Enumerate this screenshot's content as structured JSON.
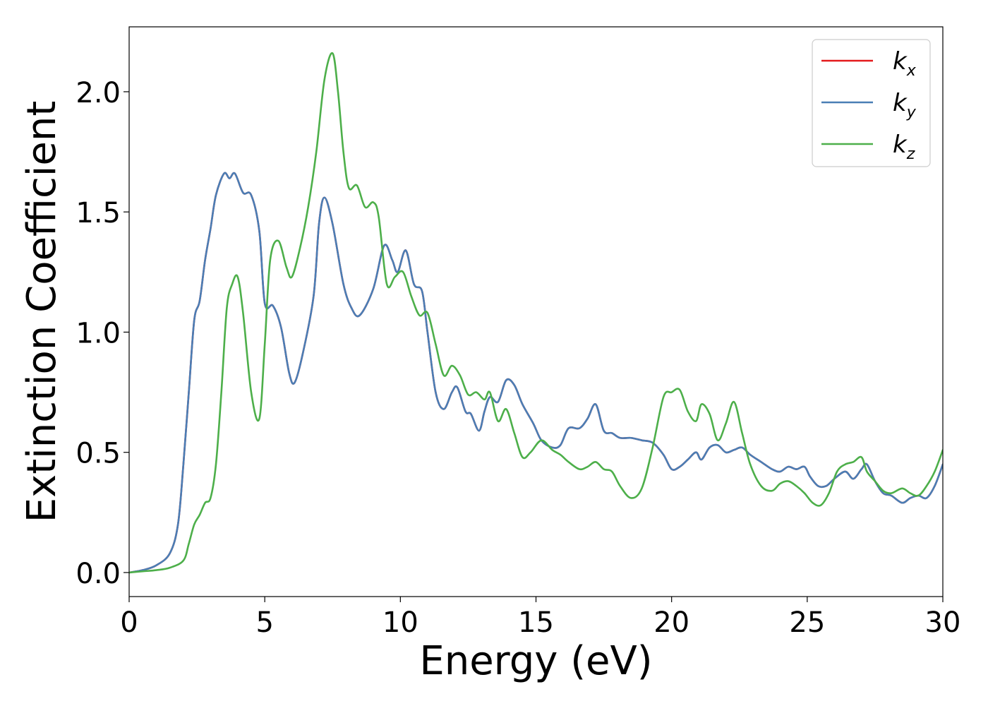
{
  "chart_data": {
    "type": "line",
    "title": "",
    "xlabel": "Energy (eV)",
    "ylabel": "Extinction Coefficient",
    "xlim": [
      0,
      30
    ],
    "ylim": [
      -0.1,
      2.27
    ],
    "xticks": [
      0,
      5,
      10,
      15,
      20,
      25,
      30
    ],
    "xtick_labels": [
      "0",
      "5",
      "10",
      "15",
      "20",
      "25",
      "30"
    ],
    "yticks": [
      0.0,
      0.5,
      1.0,
      1.5,
      2.0
    ],
    "ytick_labels": [
      "0.0",
      "0.5",
      "1.0",
      "1.5",
      "2.0"
    ],
    "grid": false,
    "legend_position": "top-right",
    "series": [
      {
        "name": "k_x",
        "legend_main": "k",
        "legend_sub": "x",
        "color": "#e41a1c",
        "x": [
          0,
          0.5,
          1.0,
          1.5,
          1.8,
          2.0,
          2.2,
          2.4,
          2.6,
          2.8,
          3.0,
          3.2,
          3.5,
          3.7,
          3.9,
          4.2,
          4.5,
          4.8,
          5.0,
          5.3,
          5.6,
          5.9,
          6.1,
          6.4,
          6.8,
          7.0,
          7.2,
          7.5,
          7.9,
          8.2,
          8.5,
          9.0,
          9.4,
          9.7,
          9.9,
          10.2,
          10.5,
          10.8,
          11.0,
          11.3,
          11.6,
          11.9,
          12.1,
          12.4,
          12.6,
          12.9,
          13.1,
          13.3,
          13.6,
          13.9,
          14.2,
          14.5,
          14.9,
          15.2,
          15.6,
          15.9,
          16.2,
          16.6,
          16.9,
          17.2,
          17.5,
          17.8,
          18.1,
          18.5,
          18.9,
          19.3,
          19.7,
          20.0,
          20.3,
          20.6,
          20.9,
          21.1,
          21.4,
          21.7,
          22.0,
          22.3,
          22.6,
          22.9,
          23.3,
          23.7,
          24.0,
          24.3,
          24.6,
          24.9,
          25.1,
          25.4,
          25.7,
          26.0,
          26.4,
          26.7,
          27.0,
          27.2,
          27.5,
          27.8,
          28.1,
          28.5,
          28.8,
          29.1,
          29.4,
          29.7,
          30.0
        ],
        "y": [
          0.0,
          0.01,
          0.03,
          0.08,
          0.2,
          0.45,
          0.75,
          1.05,
          1.13,
          1.3,
          1.43,
          1.57,
          1.66,
          1.64,
          1.66,
          1.58,
          1.57,
          1.42,
          1.12,
          1.11,
          1.02,
          0.83,
          0.79,
          0.91,
          1.15,
          1.45,
          1.56,
          1.45,
          1.2,
          1.1,
          1.07,
          1.18,
          1.36,
          1.3,
          1.25,
          1.34,
          1.2,
          1.17,
          1.0,
          0.75,
          0.68,
          0.75,
          0.77,
          0.67,
          0.66,
          0.59,
          0.67,
          0.73,
          0.71,
          0.8,
          0.78,
          0.7,
          0.62,
          0.55,
          0.52,
          0.53,
          0.6,
          0.6,
          0.64,
          0.7,
          0.59,
          0.58,
          0.56,
          0.56,
          0.55,
          0.54,
          0.49,
          0.43,
          0.44,
          0.47,
          0.5,
          0.47,
          0.52,
          0.53,
          0.5,
          0.51,
          0.52,
          0.49,
          0.46,
          0.43,
          0.42,
          0.44,
          0.43,
          0.44,
          0.4,
          0.36,
          0.36,
          0.39,
          0.42,
          0.39,
          0.43,
          0.45,
          0.38,
          0.33,
          0.32,
          0.29,
          0.31,
          0.32,
          0.31,
          0.36,
          0.45
        ]
      },
      {
        "name": "k_y",
        "legend_main": "k",
        "legend_sub": "y",
        "color": "#4a7eb5",
        "x": [
          0,
          0.5,
          1.0,
          1.5,
          1.8,
          2.0,
          2.2,
          2.4,
          2.6,
          2.8,
          3.0,
          3.2,
          3.5,
          3.7,
          3.9,
          4.2,
          4.5,
          4.8,
          5.0,
          5.3,
          5.6,
          5.9,
          6.1,
          6.4,
          6.8,
          7.0,
          7.2,
          7.5,
          7.9,
          8.2,
          8.5,
          9.0,
          9.4,
          9.7,
          9.9,
          10.2,
          10.5,
          10.8,
          11.0,
          11.3,
          11.6,
          11.9,
          12.1,
          12.4,
          12.6,
          12.9,
          13.1,
          13.3,
          13.6,
          13.9,
          14.2,
          14.5,
          14.9,
          15.2,
          15.6,
          15.9,
          16.2,
          16.6,
          16.9,
          17.2,
          17.5,
          17.8,
          18.1,
          18.5,
          18.9,
          19.3,
          19.7,
          20.0,
          20.3,
          20.6,
          20.9,
          21.1,
          21.4,
          21.7,
          22.0,
          22.3,
          22.6,
          22.9,
          23.3,
          23.7,
          24.0,
          24.3,
          24.6,
          24.9,
          25.1,
          25.4,
          25.7,
          26.0,
          26.4,
          26.7,
          27.0,
          27.2,
          27.5,
          27.8,
          28.1,
          28.5,
          28.8,
          29.1,
          29.4,
          29.7,
          30.0
        ],
        "y": [
          0.0,
          0.01,
          0.03,
          0.08,
          0.2,
          0.45,
          0.75,
          1.05,
          1.13,
          1.3,
          1.43,
          1.57,
          1.66,
          1.64,
          1.66,
          1.58,
          1.57,
          1.42,
          1.12,
          1.11,
          1.02,
          0.83,
          0.79,
          0.91,
          1.15,
          1.45,
          1.56,
          1.45,
          1.2,
          1.1,
          1.07,
          1.18,
          1.36,
          1.3,
          1.25,
          1.34,
          1.2,
          1.17,
          1.0,
          0.75,
          0.68,
          0.75,
          0.77,
          0.67,
          0.66,
          0.59,
          0.67,
          0.73,
          0.71,
          0.8,
          0.78,
          0.7,
          0.62,
          0.55,
          0.52,
          0.53,
          0.6,
          0.6,
          0.64,
          0.7,
          0.59,
          0.58,
          0.56,
          0.56,
          0.55,
          0.54,
          0.49,
          0.43,
          0.44,
          0.47,
          0.5,
          0.47,
          0.52,
          0.53,
          0.5,
          0.51,
          0.52,
          0.49,
          0.46,
          0.43,
          0.42,
          0.44,
          0.43,
          0.44,
          0.4,
          0.36,
          0.36,
          0.39,
          0.42,
          0.39,
          0.43,
          0.45,
          0.38,
          0.33,
          0.32,
          0.29,
          0.31,
          0.32,
          0.31,
          0.36,
          0.45
        ]
      },
      {
        "name": "k_z",
        "legend_main": "k",
        "legend_sub": "z",
        "color": "#4daf4a",
        "x": [
          0,
          0.5,
          1.0,
          1.5,
          2.0,
          2.2,
          2.4,
          2.6,
          2.8,
          3.0,
          3.2,
          3.4,
          3.6,
          3.8,
          4.0,
          4.2,
          4.5,
          4.8,
          5.0,
          5.2,
          5.5,
          5.8,
          6.0,
          6.3,
          6.6,
          6.9,
          7.2,
          7.5,
          7.7,
          7.9,
          8.1,
          8.4,
          8.7,
          9.0,
          9.2,
          9.5,
          9.8,
          10.1,
          10.4,
          10.7,
          11.0,
          11.3,
          11.6,
          11.9,
          12.2,
          12.5,
          12.8,
          13.1,
          13.3,
          13.6,
          13.9,
          14.2,
          14.5,
          14.8,
          15.2,
          15.6,
          15.9,
          16.2,
          16.6,
          16.9,
          17.2,
          17.5,
          17.8,
          18.1,
          18.5,
          18.9,
          19.3,
          19.7,
          20.0,
          20.3,
          20.6,
          20.9,
          21.1,
          21.4,
          21.7,
          22.0,
          22.3,
          22.6,
          22.9,
          23.3,
          23.7,
          24.0,
          24.3,
          24.6,
          24.9,
          25.2,
          25.5,
          25.8,
          26.1,
          26.4,
          26.7,
          27.0,
          27.2,
          27.5,
          27.8,
          28.1,
          28.5,
          28.8,
          29.1,
          29.4,
          29.7,
          30.0
        ],
        "y": [
          0.0,
          0.005,
          0.01,
          0.02,
          0.05,
          0.12,
          0.2,
          0.24,
          0.29,
          0.31,
          0.45,
          0.75,
          1.1,
          1.2,
          1.23,
          1.08,
          0.75,
          0.64,
          0.95,
          1.3,
          1.38,
          1.27,
          1.23,
          1.35,
          1.52,
          1.75,
          2.05,
          2.16,
          2.0,
          1.75,
          1.6,
          1.61,
          1.52,
          1.54,
          1.48,
          1.2,
          1.23,
          1.25,
          1.15,
          1.07,
          1.08,
          0.95,
          0.82,
          0.86,
          0.82,
          0.74,
          0.75,
          0.72,
          0.75,
          0.63,
          0.68,
          0.58,
          0.48,
          0.5,
          0.55,
          0.51,
          0.49,
          0.46,
          0.43,
          0.44,
          0.46,
          0.43,
          0.42,
          0.36,
          0.31,
          0.35,
          0.52,
          0.73,
          0.75,
          0.76,
          0.67,
          0.63,
          0.7,
          0.66,
          0.55,
          0.62,
          0.71,
          0.58,
          0.45,
          0.36,
          0.34,
          0.37,
          0.38,
          0.36,
          0.33,
          0.29,
          0.28,
          0.33,
          0.42,
          0.45,
          0.46,
          0.48,
          0.42,
          0.38,
          0.34,
          0.33,
          0.35,
          0.33,
          0.32,
          0.36,
          0.42,
          0.51
        ]
      }
    ]
  }
}
